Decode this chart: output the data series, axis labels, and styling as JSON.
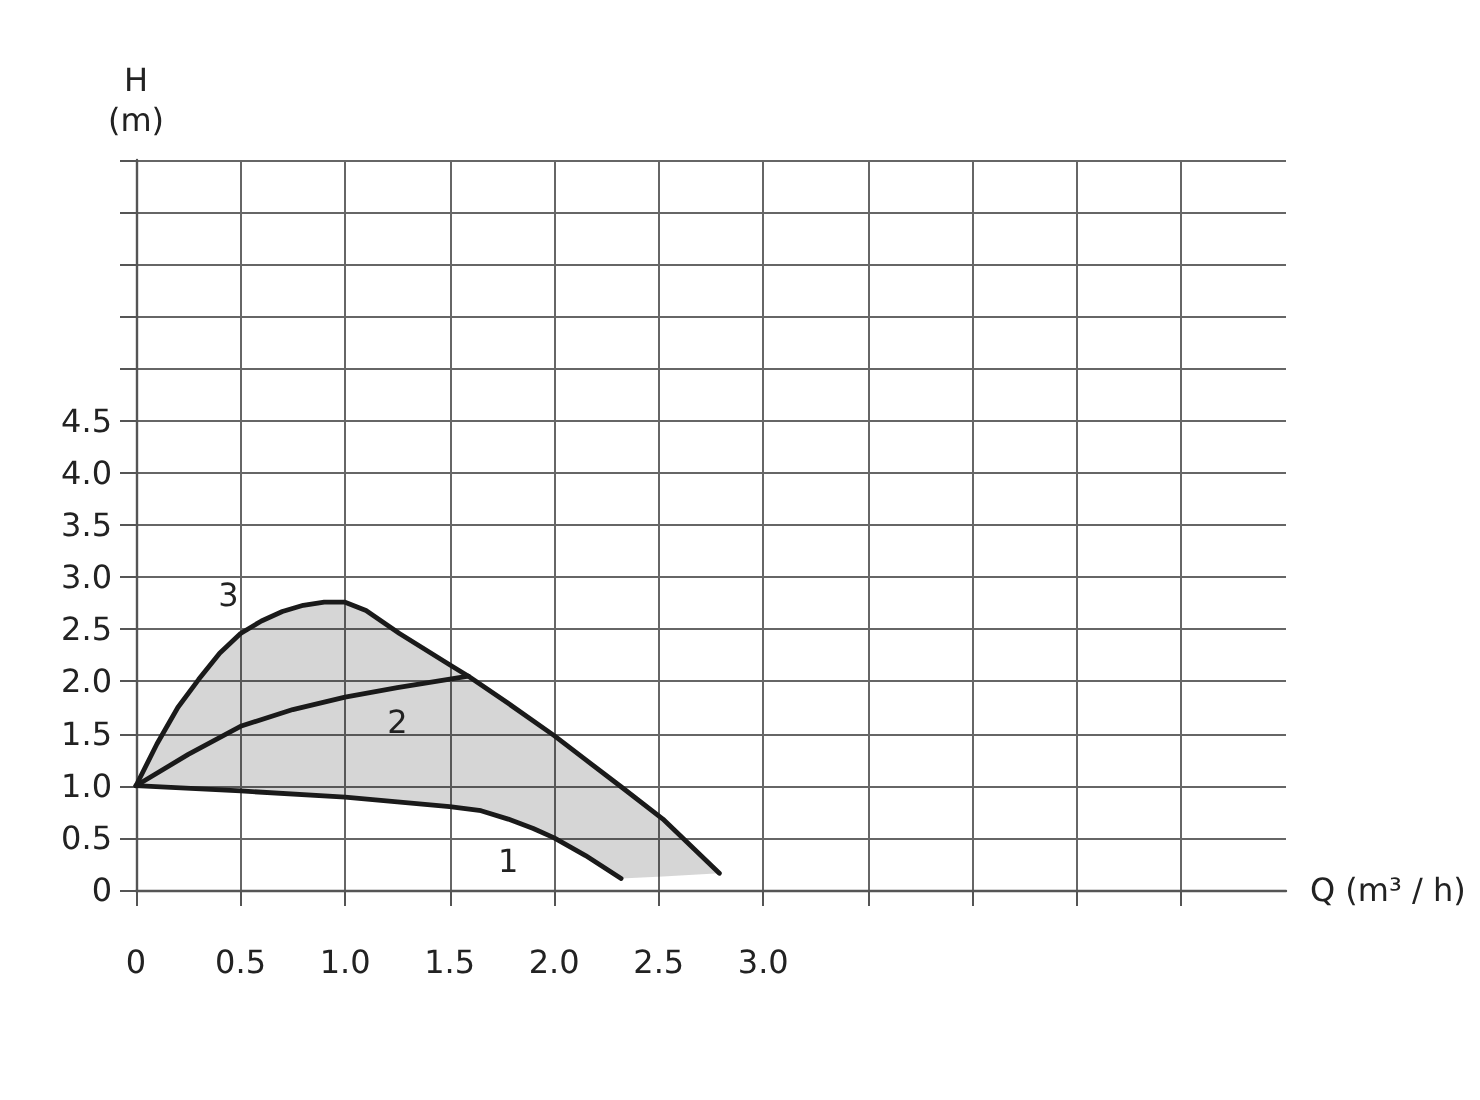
{
  "chart_data": {
    "type": "line",
    "xlabel": "Q (m³ / h)",
    "ylabel": "H (m)",
    "xlim": [
      0,
      5.5
    ],
    "ylim": [
      0,
      7.0
    ],
    "xticks": [
      0,
      0.5,
      {
        "value": 1.0,
        "label": "1.0"
      },
      1.5,
      {
        "value": 2.0,
        "label": "2.0"
      },
      2.5,
      {
        "value": 3.0,
        "label": "3.0"
      },
      {
        "value": 3.5,
        "label": null
      },
      {
        "value": 4.0,
        "label": null
      },
      {
        "value": 4.5,
        "label": null
      },
      {
        "value": 5.0,
        "label": null
      }
    ],
    "yticks": [
      0,
      0.5,
      {
        "value": 1.0,
        "label": "1.0"
      },
      1.5,
      {
        "value": 2.0,
        "label": "2.0"
      },
      2.5,
      {
        "value": 3.0,
        "label": "3.0"
      },
      3.5,
      {
        "value": 4.0,
        "label": "4.0"
      },
      4.5,
      {
        "value": 5.0,
        "label": null
      },
      {
        "value": 5.5,
        "label": null
      },
      {
        "value": 6.0,
        "label": null
      },
      {
        "value": 6.5,
        "label": null
      },
      {
        "value": 7.0,
        "label": null
      }
    ],
    "grid": true,
    "marker": "none",
    "line_style": "solid",
    "series": [
      {
        "name": "1",
        "color": "#1a1a1a",
        "x": [
          0,
          0.5,
          1.0,
          1.5,
          1.65,
          1.78,
          1.9,
          2.0,
          2.15,
          2.32
        ],
        "values": [
          1.0,
          0.95,
          0.89,
          0.8,
          0.76,
          0.68,
          0.59,
          0.5,
          0.33,
          0.11
        ]
      },
      {
        "name": "2",
        "color": "#1a1a1a",
        "x": [
          0,
          0.25,
          0.5,
          0.75,
          1.0,
          1.25,
          1.59
        ],
        "values": [
          1.0,
          1.3,
          1.57,
          1.73,
          1.85,
          1.94,
          2.05
        ]
      },
      {
        "name": "3",
        "color": "#1a1a1a",
        "x": [
          0,
          0.1,
          0.2,
          0.3,
          0.4,
          0.5,
          0.6,
          0.7,
          0.8,
          0.9,
          1.0,
          1.1,
          1.26,
          1.5,
          1.59,
          1.78,
          2.0,
          2.15,
          2.32,
          2.52,
          2.79
        ],
        "values": [
          1.0,
          1.4,
          1.75,
          2.02,
          2.27,
          2.46,
          2.58,
          2.67,
          2.73,
          2.76,
          2.76,
          2.68,
          2.46,
          2.16,
          2.05,
          1.79,
          1.48,
          1.25,
          0.99,
          0.68,
          0.16
        ],
        "upper": [
          1.0,
          1.4,
          1.75,
          2.02,
          2.27,
          2.46,
          2.58,
          2.67,
          2.73,
          2.76,
          2.76,
          2.68,
          2.46,
          2.16,
          2.05,
          1.79,
          1.48,
          1.25,
          0.99,
          0.68,
          0.16
        ],
        "lower": [
          1.0,
          0.99,
          0.98,
          0.97,
          0.96,
          0.95,
          0.94,
          0.93,
          0.92,
          0.9,
          0.89,
          0.87,
          0.84,
          0.8,
          0.79,
          0.68,
          0.5,
          0.33,
          0.11,
          0.13,
          0.16
        ]
      }
    ]
  }
}
